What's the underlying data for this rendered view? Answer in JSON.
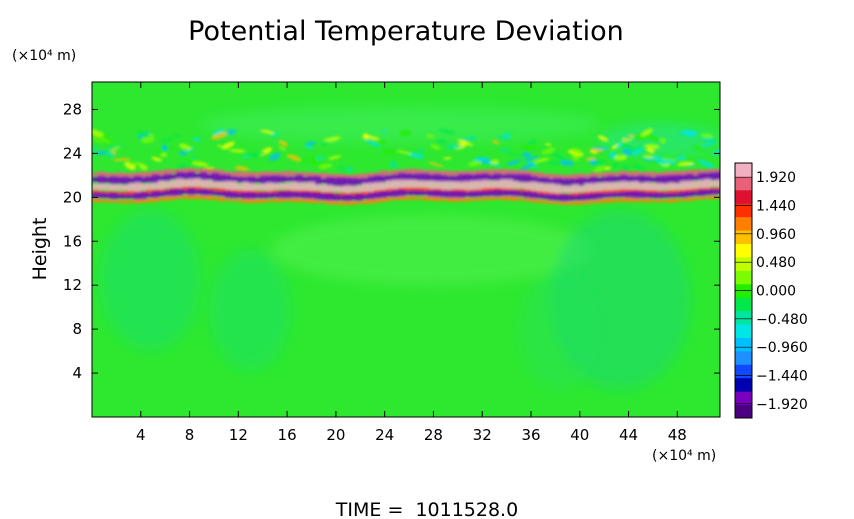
{
  "chart_data": {
    "type": "heatmap",
    "title": "Potential Temperature Deviation",
    "ylabel": "Height",
    "y_unit_label": "(×10⁴ m)",
    "x_unit_label": "(×10⁴ m)",
    "footer": "TIME =  1011528.0",
    "xlim": [
      0,
      51.5
    ],
    "ylim": [
      0,
      30.5
    ],
    "x_ticks": [
      4,
      8,
      12,
      16,
      20,
      24,
      28,
      32,
      36,
      40,
      44,
      48
    ],
    "y_ticks": [
      4,
      8,
      12,
      16,
      20,
      24,
      28
    ],
    "x_tick_labels": [
      "4",
      "8",
      "12",
      "16",
      "20",
      "24",
      "28",
      "32",
      "36",
      "40",
      "44",
      "48"
    ],
    "y_tick_labels": [
      "4",
      "8",
      "12",
      "16",
      "20",
      "24",
      "28"
    ],
    "colorbar": {
      "min": -2.16,
      "max": 2.16,
      "labels": [
        "1.920",
        "1.440",
        "0.960",
        "0.480",
        "0.000",
        "−0.480",
        "−0.960",
        "−1.440",
        "−1.920"
      ],
      "label_values": [
        1.92,
        1.44,
        0.96,
        0.48,
        0.0,
        -0.48,
        -0.96,
        -1.44,
        -1.92
      ],
      "colors": [
        "#4b0082",
        "#7a00c0",
        "#0000b0",
        "#1048ff",
        "#1e90ff",
        "#00bfff",
        "#00e5e5",
        "#00e6a0",
        "#00e84a",
        "#22ee00",
        "#7cfc00",
        "#c0ff00",
        "#ffff00",
        "#ffc000",
        "#ff8000",
        "#ff3000",
        "#e01030",
        "#e8607a",
        "#f0b0c0"
      ]
    },
    "features": [
      {
        "name": "perturbation-band",
        "x_range": [
          0,
          51.5
        ],
        "y_range": [
          19.5,
          22.5
        ],
        "amplitude_range": [
          -1.92,
          1.92
        ]
      },
      {
        "name": "wave-region",
        "x_range": [
          0,
          51.5
        ],
        "y_range": [
          22.5,
          26
        ],
        "amplitude_range": [
          -0.96,
          0.96
        ]
      }
    ]
  }
}
